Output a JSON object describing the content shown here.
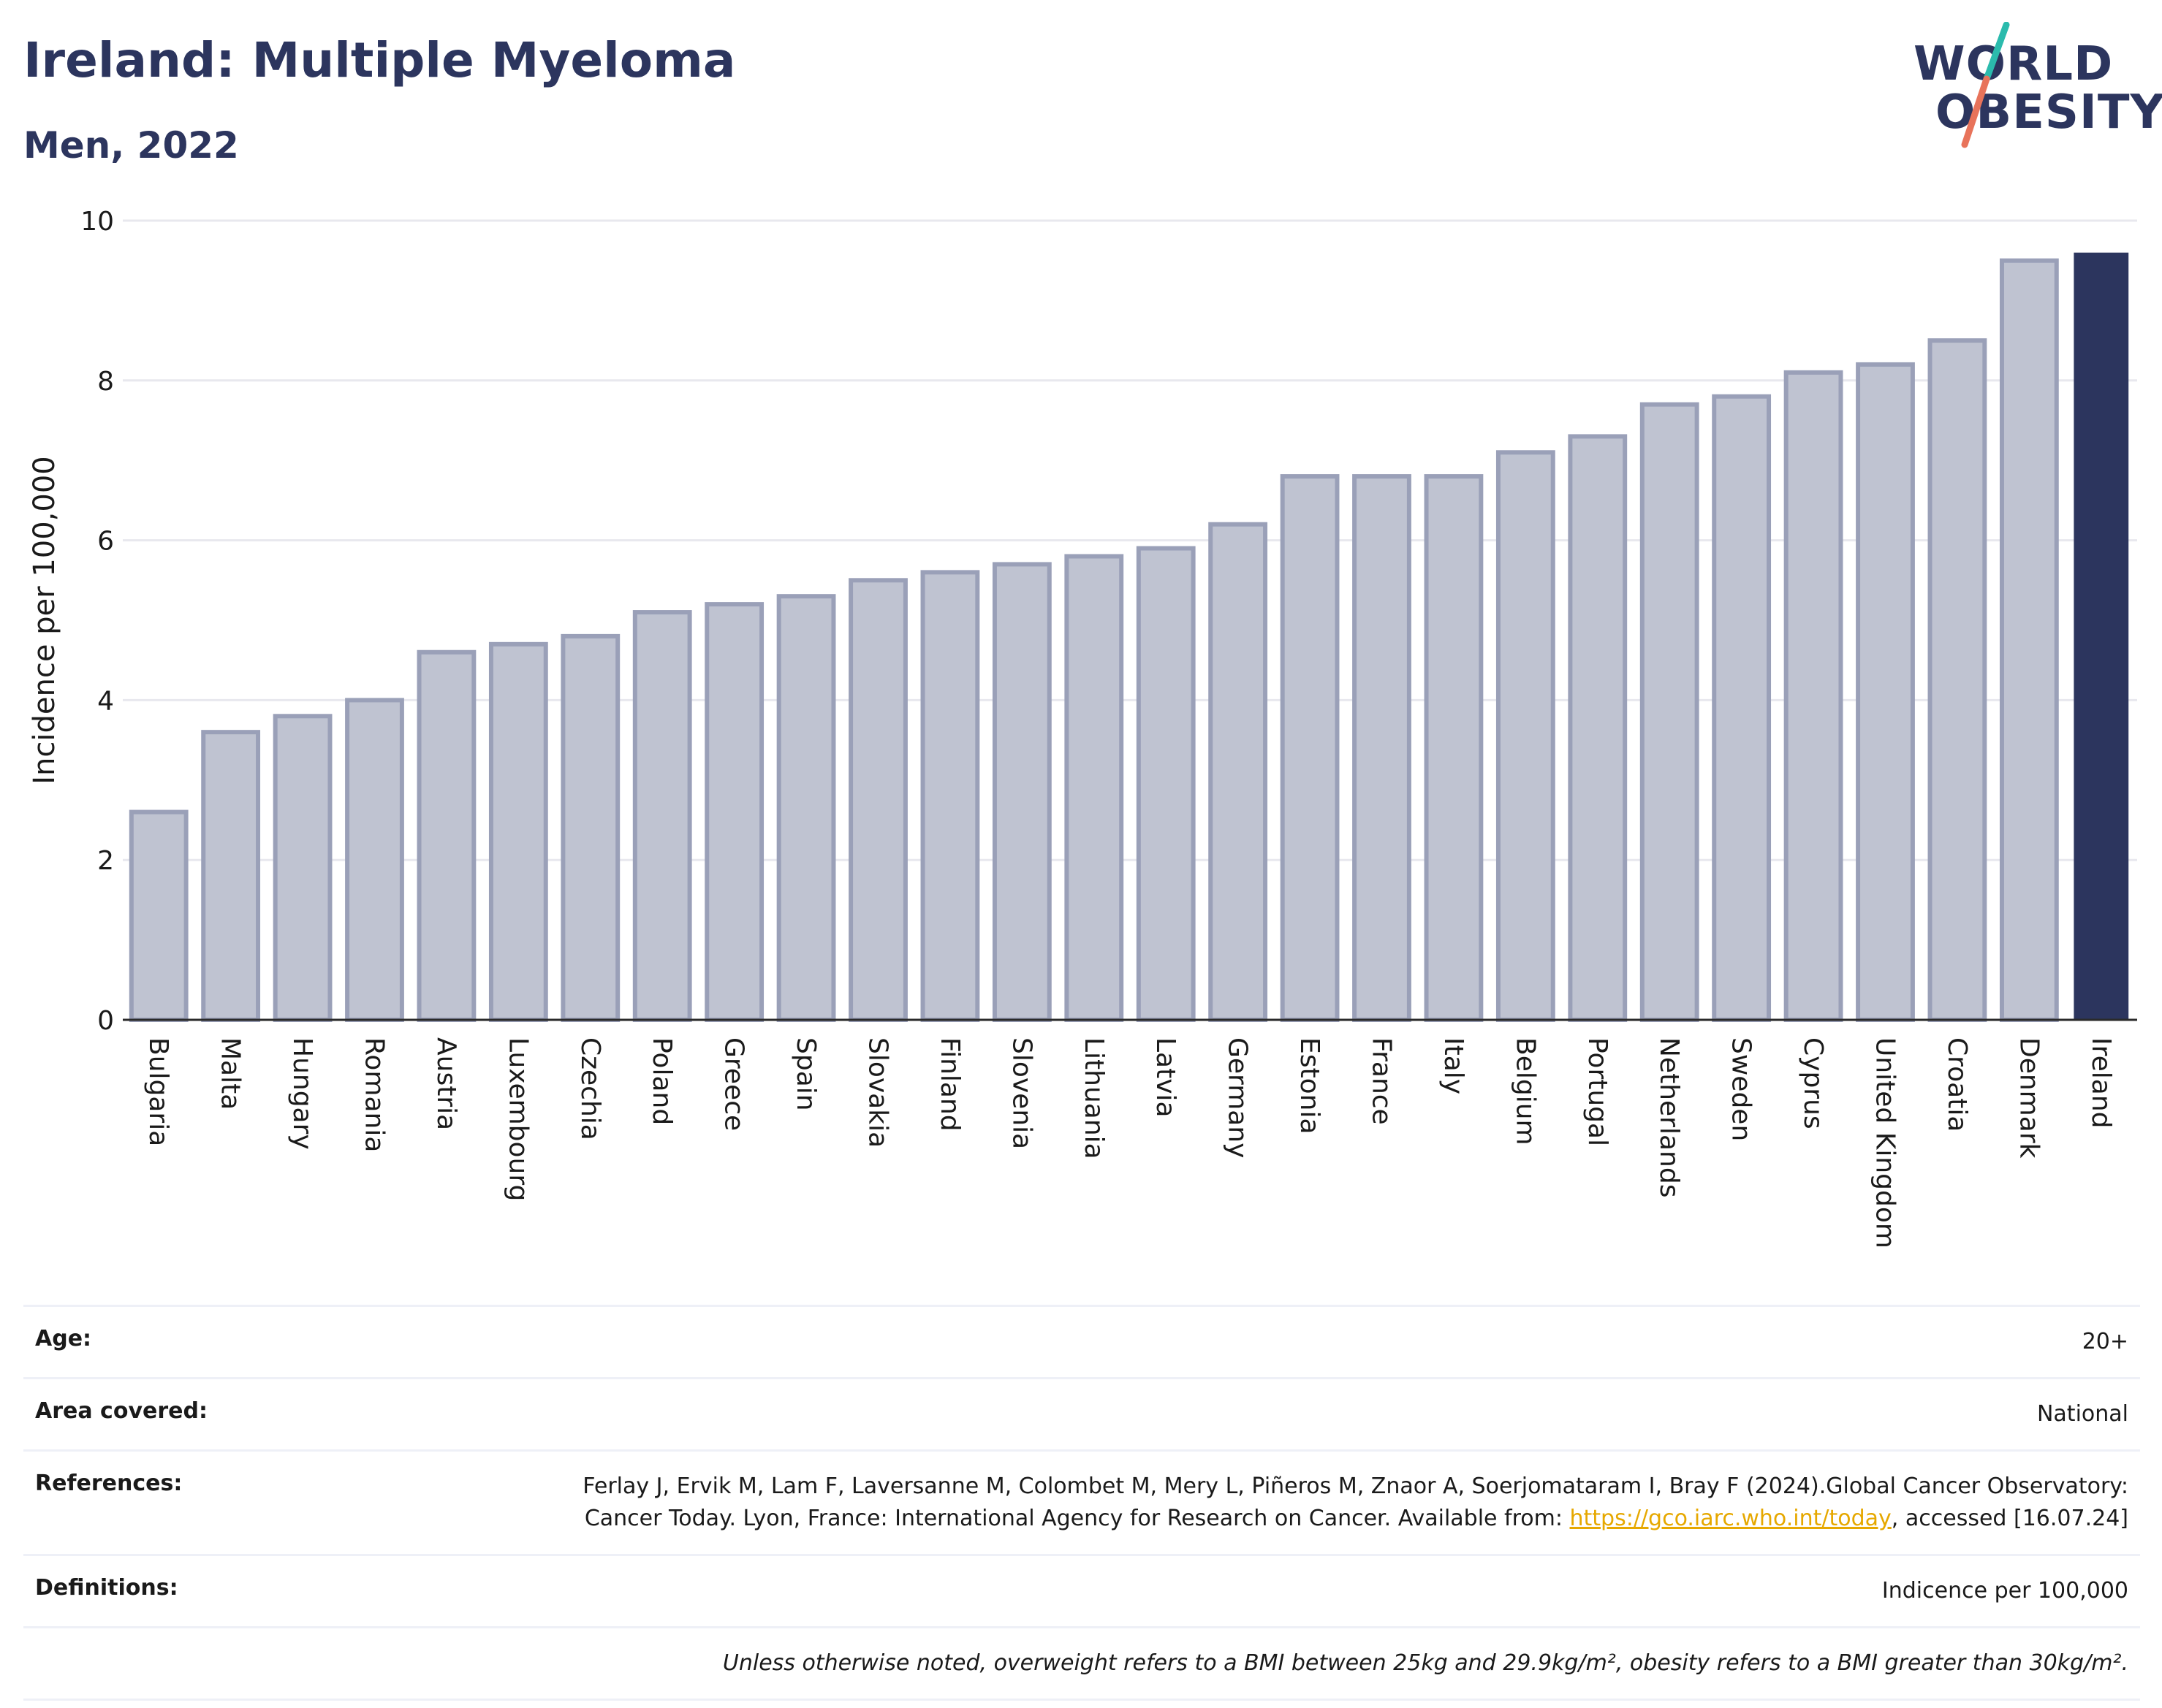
{
  "header": {
    "title": "Ireland: Multiple Myeloma",
    "subtitle": "Men, 2022"
  },
  "logo": {
    "word1": "WORLD",
    "word2": "OBESITY",
    "text": "WORLD OBESITY",
    "colors": {
      "text": "#2c355e",
      "slash_top": "#2bbbad",
      "slash_bottom": "#e8735a"
    }
  },
  "colors": {
    "bar": "#bfc3d1",
    "bar_stroke": "#9aa0b8",
    "highlight": "#2c355e",
    "grid": "#e8e8ee",
    "link": "#e6a800"
  },
  "chart_data": {
    "type": "bar",
    "ylabel": "Incidence per 100,000",
    "ylim": [
      0,
      10
    ],
    "yticks": [
      0,
      2,
      4,
      6,
      8,
      10
    ],
    "grid": true,
    "highlight": "Ireland",
    "categories": [
      "Bulgaria",
      "Malta",
      "Hungary",
      "Romania",
      "Austria",
      "Luxembourg",
      "Czechia",
      "Poland",
      "Greece",
      "Spain",
      "Slovakia",
      "Finland",
      "Slovenia",
      "Lithuania",
      "Latvia",
      "Germany",
      "Estonia",
      "France",
      "Italy",
      "Belgium",
      "Portugal",
      "Netherlands",
      "Sweden",
      "Cyprus",
      "United Kingdom",
      "Croatia",
      "Denmark",
      "Ireland"
    ],
    "values": [
      2.6,
      3.6,
      3.8,
      4.0,
      4.6,
      4.7,
      4.8,
      5.1,
      5.2,
      5.3,
      5.5,
      5.6,
      5.7,
      5.8,
      5.9,
      6.2,
      6.8,
      6.8,
      6.8,
      7.1,
      7.3,
      7.7,
      7.8,
      8.1,
      8.2,
      8.5,
      9.5,
      9.6
    ]
  },
  "info": {
    "age_label": "Age:",
    "age_value": "20+",
    "area_label": "Area covered:",
    "area_value": "National",
    "references_label": "References:",
    "references_text": "Ferlay J, Ervik M, Lam F, Laversanne M, Colombet M, Mery L, Piñeros M, Znaor A, Soerjomataram I, Bray F (2024).Global Cancer Observatory: Cancer Today. Lyon, France: International Agency for Research on Cancer. Available from: ",
    "references_link": "https://gco.iarc.who.int/today",
    "references_tail": ", accessed [16.07.24]",
    "definitions_label": "Definitions:",
    "definitions_value": "Indicence per 100,000",
    "note": "Unless otherwise noted, overweight refers to a BMI between 25kg and 29.9kg/m², obesity refers to a BMI greater than 30kg/m²."
  }
}
